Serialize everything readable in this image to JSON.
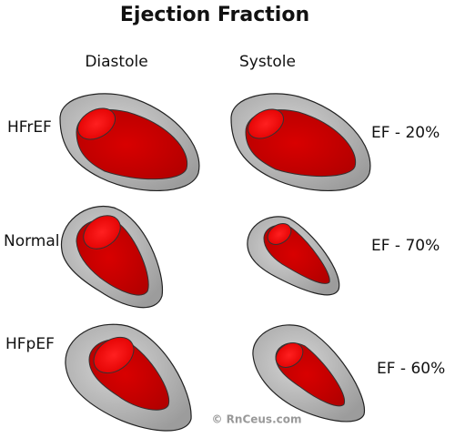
{
  "header": {
    "title": "Ejection Fraction"
  },
  "columns": [
    "Diastole",
    "Systole"
  ],
  "rows": [
    {
      "label": "HFrEF",
      "ef": "EF - 20%"
    },
    {
      "label": "Normal",
      "ef": "EF - 70%"
    },
    {
      "label": "HFpEF",
      "ef": "EF - 60%"
    }
  ],
  "footer": {
    "copyright": "© RnCeus.com"
  }
}
